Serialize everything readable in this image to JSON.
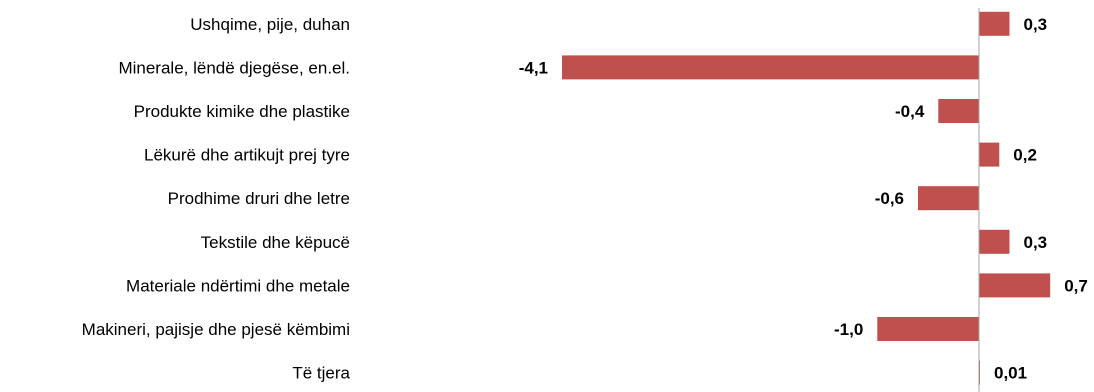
{
  "chart_data": {
    "type": "bar",
    "orientation": "horizontal",
    "categories": [
      "Ushqime, pije, duhan",
      "Minerale, lëndë djegëse, en.el.",
      "Produkte kimike dhe plastike",
      "Lëkurë dhe artikujt prej tyre",
      "Prodhime druri dhe letre",
      "Tekstile dhe këpucë",
      "Materiale ndërtimi dhe metale",
      "Makineri, pajisje dhe pjesë këmbimi",
      "Të tjera"
    ],
    "values": [
      0.3,
      -4.1,
      -0.4,
      0.2,
      -0.6,
      0.3,
      0.7,
      -1.0,
      0.01
    ],
    "value_labels": [
      "0,3",
      "-4,1",
      "-0,4",
      "0,2",
      "-0,6",
      "0,3",
      "0,7",
      "-1,0",
      "0,01"
    ],
    "title": "",
    "xlabel": "",
    "ylabel": "",
    "xlim": [
      -4.1,
      0.7
    ],
    "grid": false,
    "legend": "none",
    "bar_color": "#c0504d",
    "axis_color": "#a6a6a6"
  }
}
